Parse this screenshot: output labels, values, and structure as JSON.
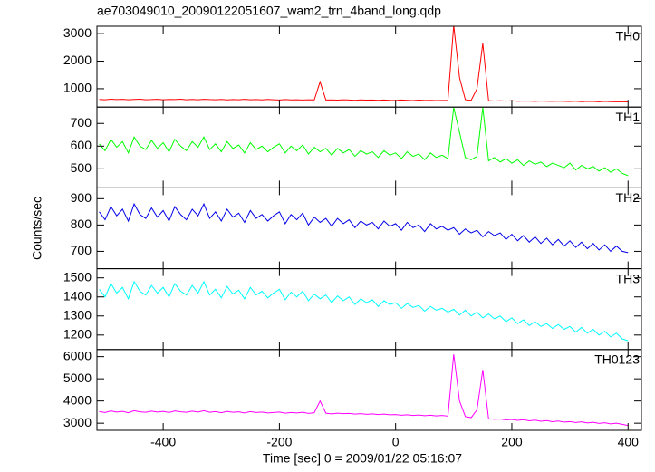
{
  "chart_data": {
    "type": "line",
    "title": "ae703049010_20090122051607_wam2_trn_4band_long.qdp",
    "xlabel": "Time [sec] 0 = 2009/01/22 05:16:07",
    "ylabel": "Counts/sec",
    "xlim": [
      -514,
      423
    ],
    "xticks": [
      -400,
      -200,
      0,
      200,
      400
    ],
    "x": [
      -510,
      -500,
      -490,
      -480,
      -470,
      -460,
      -450,
      -440,
      -430,
      -420,
      -410,
      -400,
      -390,
      -380,
      -370,
      -360,
      -350,
      -340,
      -330,
      -320,
      -310,
      -300,
      -290,
      -280,
      -270,
      -260,
      -250,
      -240,
      -230,
      -220,
      -210,
      -200,
      -190,
      -180,
      -170,
      -160,
      -150,
      -140,
      -130,
      -120,
      -110,
      -100,
      -90,
      -80,
      -70,
      -60,
      -50,
      -40,
      -30,
      -20,
      -10,
      0,
      10,
      20,
      30,
      40,
      50,
      60,
      70,
      80,
      90,
      100,
      110,
      120,
      130,
      140,
      150,
      160,
      170,
      180,
      190,
      200,
      210,
      220,
      230,
      240,
      250,
      260,
      270,
      280,
      290,
      300,
      310,
      320,
      330,
      340,
      350,
      360,
      370,
      380,
      390,
      400
    ],
    "series": [
      {
        "name": "TH0",
        "color": "#ff0000",
        "ylim": [
          333,
          3267
        ],
        "yticks": [
          1000,
          2000,
          3000
        ],
        "values": [
          610,
          600,
          620,
          605,
          615,
          600,
          610,
          620,
          600,
          605,
          615,
          600,
          610,
          605,
          620,
          600,
          610,
          600,
          615,
          605,
          600,
          610,
          595,
          605,
          600,
          615,
          600,
          605,
          595,
          610,
          600,
          590,
          605,
          595,
          600,
          590,
          600,
          595,
          1250,
          590,
          595,
          585,
          600,
          590,
          580,
          595,
          585,
          590,
          580,
          590,
          580,
          575,
          590,
          580,
          570,
          585,
          575,
          580,
          570,
          575,
          580,
          3300,
          1400,
          600,
          580,
          1000,
          2650,
          565,
          555,
          560,
          550,
          560,
          545,
          555,
          550,
          540,
          555,
          545,
          540,
          550,
          540,
          535,
          545,
          530,
          540,
          535,
          525,
          540,
          530,
          525,
          530,
          520
        ]
      },
      {
        "name": "TH1",
        "color": "#00ff00",
        "ylim": [
          416,
          772
        ],
        "yticks": [
          500,
          600,
          700
        ],
        "values": [
          610,
          580,
          630,
          595,
          620,
          570,
          640,
          600,
          585,
          625,
          590,
          615,
          575,
          630,
          600,
          580,
          620,
          595,
          640,
          585,
          610,
          575,
          620,
          590,
          605,
          570,
          615,
          585,
          600,
          575,
          595,
          610,
          570,
          600,
          580,
          605,
          565,
          595,
          575,
          590,
          560,
          590,
          570,
          585,
          555,
          580,
          565,
          575,
          550,
          580,
          560,
          570,
          545,
          575,
          555,
          565,
          540,
          570,
          550,
          560,
          545,
          770,
          660,
          550,
          540,
          555,
          770,
          535,
          550,
          530,
          545,
          525,
          540,
          515,
          535,
          520,
          530,
          510,
          525,
          515,
          505,
          525,
          495,
          515,
          500,
          510,
          490,
          505,
          485,
          500,
          480,
          470
        ]
      },
      {
        "name": "TH2",
        "color": "#0000e8",
        "ylim": [
          634,
          941
        ],
        "yticks": [
          700,
          800,
          900
        ],
        "values": [
          850,
          820,
          870,
          835,
          860,
          815,
          880,
          840,
          825,
          865,
          830,
          855,
          815,
          870,
          840,
          820,
          860,
          835,
          880,
          825,
          850,
          815,
          860,
          830,
          845,
          810,
          855,
          825,
          840,
          815,
          835,
          850,
          805,
          840,
          820,
          845,
          800,
          830,
          810,
          825,
          795,
          825,
          805,
          820,
          790,
          815,
          800,
          810,
          785,
          815,
          795,
          805,
          780,
          810,
          790,
          800,
          775,
          805,
          785,
          795,
          780,
          790,
          765,
          785,
          770,
          780,
          755,
          775,
          760,
          770,
          745,
          765,
          740,
          760,
          735,
          755,
          730,
          750,
          725,
          745,
          720,
          740,
          715,
          735,
          710,
          730,
          705,
          725,
          700,
          720,
          700,
          695
        ]
      },
      {
        "name": "TH3",
        "color": "#00ffff",
        "ylim": [
          1124,
          1548
        ],
        "yticks": [
          1200,
          1300,
          1400,
          1500
        ],
        "values": [
          1440,
          1400,
          1470,
          1420,
          1450,
          1390,
          1480,
          1430,
          1410,
          1460,
          1420,
          1450,
          1400,
          1470,
          1430,
          1410,
          1460,
          1420,
          1480,
          1410,
          1440,
          1395,
          1455,
          1415,
          1435,
          1390,
          1450,
          1410,
          1430,
          1395,
          1420,
          1440,
          1385,
          1425,
          1400,
          1430,
          1380,
          1415,
          1390,
          1410,
          1370,
          1405,
          1380,
          1400,
          1360,
          1390,
          1370,
          1385,
          1350,
          1380,
          1360,
          1370,
          1340,
          1365,
          1345,
          1355,
          1325,
          1350,
          1330,
          1340,
          1320,
          1335,
          1305,
          1330,
          1300,
          1320,
          1290,
          1310,
          1285,
          1300,
          1270,
          1290,
          1260,
          1280,
          1250,
          1270,
          1245,
          1260,
          1235,
          1255,
          1230,
          1245,
          1215,
          1240,
          1210,
          1230,
          1200,
          1220,
          1190,
          1210,
          1180,
          1170
        ]
      },
      {
        "name": "TH0123",
        "color": "#ff00ff",
        "ylim": [
          2680,
          6320
        ],
        "yticks": [
          3000,
          4000,
          5000,
          6000
        ],
        "values": [
          3520,
          3480,
          3550,
          3500,
          3530,
          3470,
          3560,
          3510,
          3490,
          3540,
          3500,
          3530,
          3480,
          3550,
          3510,
          3490,
          3540,
          3500,
          3560,
          3490,
          3520,
          3470,
          3530,
          3490,
          3510,
          3460,
          3520,
          3480,
          3500,
          3460,
          3480,
          3500,
          3450,
          3480,
          3460,
          3490,
          3440,
          3470,
          4000,
          3450,
          3420,
          3450,
          3430,
          3440,
          3410,
          3430,
          3400,
          3420,
          3390,
          3410,
          3380,
          3390,
          3360,
          3380,
          3350,
          3370,
          3340,
          3360,
          3330,
          3350,
          3320,
          6100,
          4000,
          3300,
          3250,
          3600,
          5400,
          3200,
          3180,
          3190,
          3150,
          3170,
          3130,
          3160,
          3110,
          3140,
          3090,
          3120,
          3070,
          3100,
          3050,
          3070,
          3030,
          3060,
          3010,
          3040,
          2990,
          3020,
          2970,
          3000,
          2950,
          2900
        ]
      }
    ]
  }
}
